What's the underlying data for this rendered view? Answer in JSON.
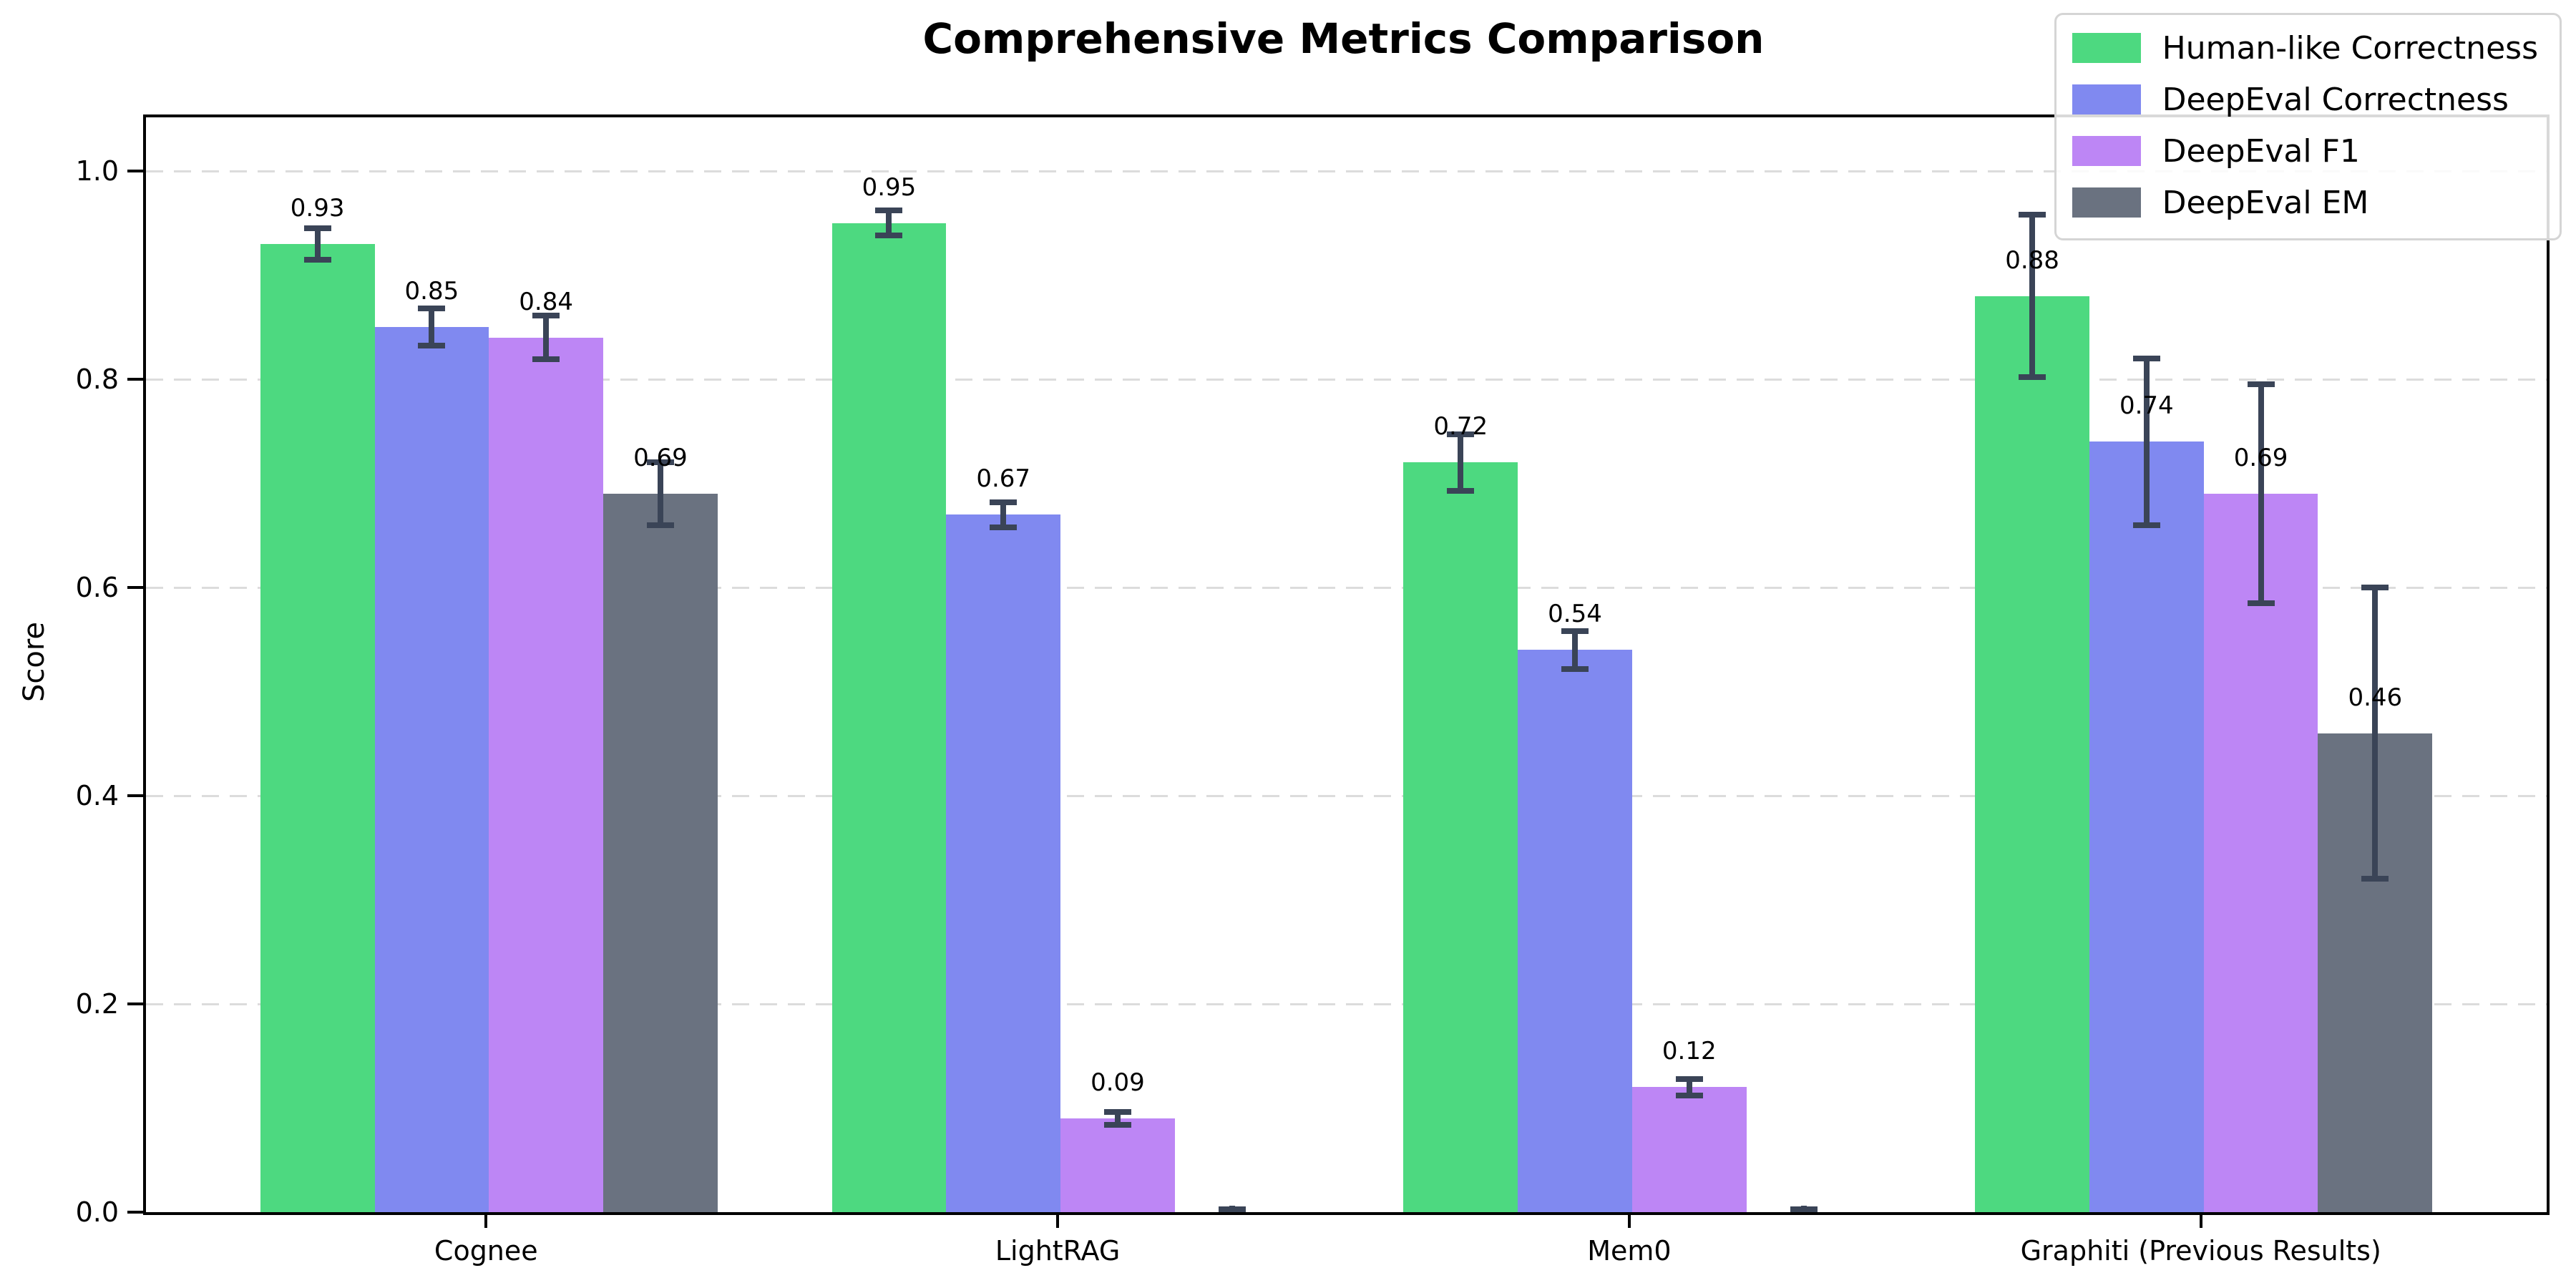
{
  "chart_data": {
    "type": "bar",
    "title": "Comprehensive Metrics Comparison",
    "ylabel": "Score",
    "xlabel": "",
    "categories": [
      "Cognee",
      "LightRAG",
      "Mem0",
      "Graphiti (Previous Results)"
    ],
    "series": [
      {
        "name": "Human-like Correctness",
        "color": "#4dd980",
        "values": [
          0.93,
          0.95,
          0.72,
          0.88
        ],
        "errors": [
          0.015,
          0.012,
          0.027,
          0.078
        ],
        "labels": [
          "0.93",
          "0.95",
          "0.72",
          "0.88"
        ]
      },
      {
        "name": "DeepEval Correctness",
        "color": "#8089f0",
        "values": [
          0.85,
          0.67,
          0.54,
          0.74
        ],
        "errors": [
          0.018,
          0.012,
          0.018,
          0.08
        ],
        "labels": [
          "0.85",
          "0.67",
          "0.54",
          "0.74"
        ]
      },
      {
        "name": "DeepEval F1",
        "color": "#bd86f5",
        "values": [
          0.84,
          0.09,
          0.12,
          0.69
        ],
        "errors": [
          0.021,
          0.006,
          0.008,
          0.105
        ],
        "labels": [
          "0.84",
          "0.09",
          "0.12",
          "0.69"
        ]
      },
      {
        "name": "DeepEval EM",
        "color": "#6a7280",
        "values": [
          0.69,
          0.0,
          0.0,
          0.46
        ],
        "errors": [
          0.03,
          0.003,
          0.003,
          0.14
        ],
        "labels": [
          "0.69",
          null,
          null,
          "0.46"
        ]
      }
    ],
    "yticks": [
      "0.0",
      "0.2",
      "0.4",
      "0.6",
      "0.8",
      "1.0"
    ],
    "ytick_values": [
      0.0,
      0.2,
      0.4,
      0.6,
      0.8,
      1.0
    ],
    "ylim": [
      0.0,
      1.05
    ],
    "grid": "horizontal-dashed",
    "legend_position": "upper right",
    "error_bar_color": "#3a4457",
    "axis_color": "#000000",
    "background_color": "#ffffff"
  }
}
